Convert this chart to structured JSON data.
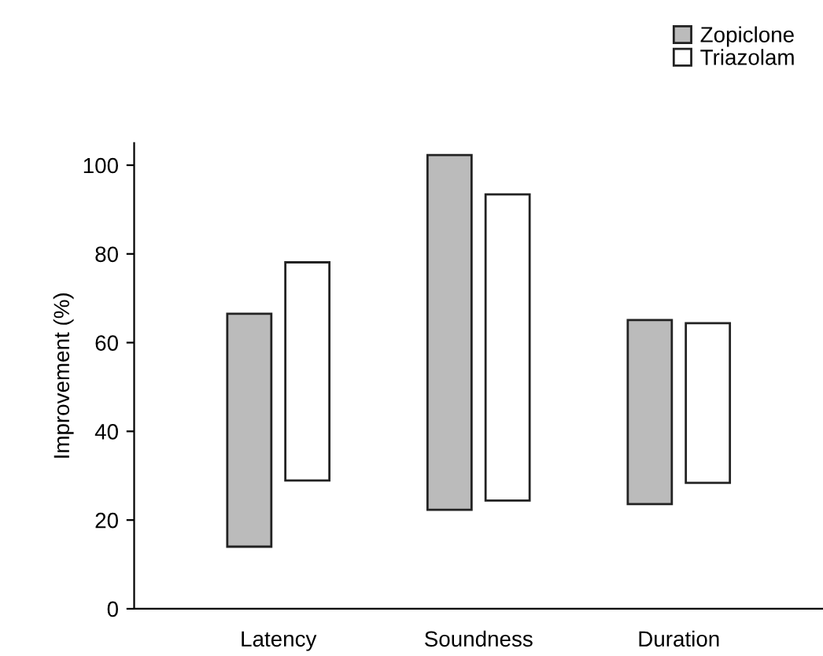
{
  "chart_data": {
    "type": "bar",
    "ylabel": "Improvement (%)",
    "categories": [
      "Latency",
      "Soundness",
      "Duration"
    ],
    "series": [
      {
        "name": "Zopiclone",
        "color": "#bbbbbb",
        "values": [
          52.5,
          80,
          41.5
        ],
        "base": [
          14,
          22.3,
          23.6
        ]
      },
      {
        "name": "Triazolam",
        "color": "#ffffff",
        "values": [
          49.2,
          69,
          36
        ],
        "base": [
          28.9,
          24.4,
          28.4
        ]
      }
    ],
    "ylim": [
      0,
      105
    ],
    "yticks": [
      0,
      20,
      40,
      60,
      80,
      100
    ],
    "grid": false,
    "legend": "top right"
  }
}
